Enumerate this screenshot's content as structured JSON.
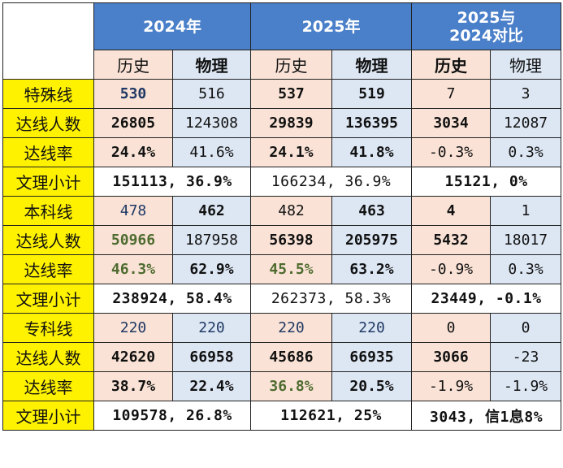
{
  "header": {
    "col_2024": "2024年",
    "col_2025": "2025年",
    "col_cmp_line1": "2025与",
    "col_cmp_line2": "2024对比"
  },
  "subheader": [
    "历史",
    "物理",
    "历史",
    "物理",
    "历史",
    "物理"
  ],
  "sections": [
    {
      "line": {
        "label": "特殊线",
        "values": [
          "530",
          "516",
          "537",
          "519",
          "7",
          "3"
        ]
      },
      "count": {
        "label": "达线人数",
        "values": [
          "26805",
          "124308",
          "29839",
          "136395",
          "3034",
          "12087"
        ]
      },
      "rate": {
        "label": "达线率",
        "values": [
          "24.4%",
          "41.6%",
          "24.1%",
          "41.8%",
          "-0.3%",
          "0.3%"
        ]
      },
      "subtotal": {
        "label": "文理小计",
        "values": [
          "151113, 36.9%",
          "166234, 36.9%",
          "15121, 0%"
        ]
      }
    },
    {
      "line": {
        "label": "本科线",
        "values": [
          "478",
          "462",
          "482",
          "463",
          "4",
          "1"
        ]
      },
      "count": {
        "label": "达线人数",
        "values": [
          "50966",
          "187958",
          "56398",
          "205975",
          "5432",
          "18017"
        ]
      },
      "rate": {
        "label": "达线率",
        "values": [
          "46.3%",
          "62.9%",
          "45.5%",
          "63.2%",
          "-0.9%",
          "0.3%"
        ]
      },
      "subtotal": {
        "label": "文理小计",
        "values": [
          "238924, 58.4%",
          "262373, 58.3%",
          "23449, -0.1%"
        ]
      }
    },
    {
      "line": {
        "label": "专科线",
        "values": [
          "220",
          "220",
          "220",
          "220",
          "0",
          "0"
        ]
      },
      "count": {
        "label": "达线人数",
        "values": [
          "42620",
          "66958",
          "45686",
          "66935",
          "3066",
          "-23"
        ]
      },
      "rate": {
        "label": "达线率",
        "values": [
          "38.7%",
          "22.4%",
          "36.8%",
          "20.5%",
          "-1.9%",
          "-1.9%"
        ]
      },
      "subtotal": {
        "label": "文理小计",
        "values": [
          "109578, 26.8%",
          "112621, 25%",
          "3043, 信1息8%"
        ]
      }
    }
  ],
  "colors": {
    "header_blue": "#4a7fc9",
    "label_yellow": "#fff200",
    "history_pink": "#fae3d6",
    "physics_blue": "#dde7f4"
  }
}
